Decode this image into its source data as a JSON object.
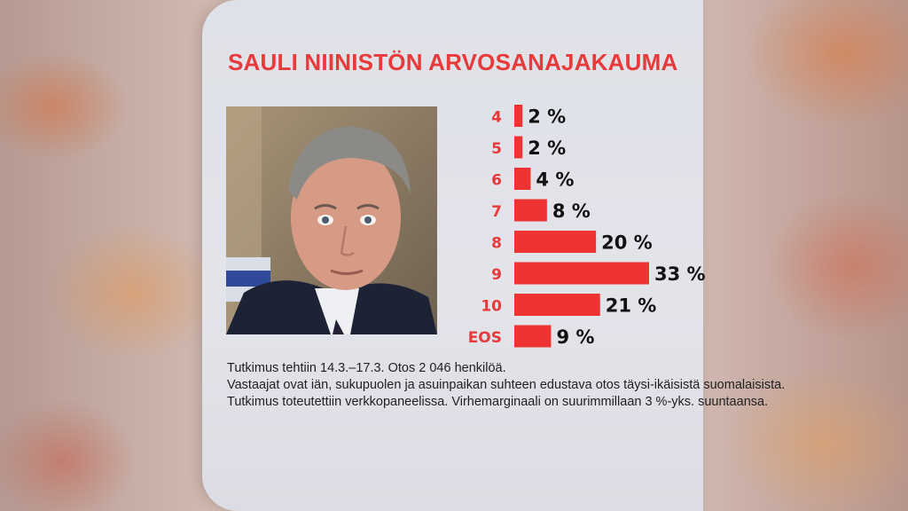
{
  "title": "SAULI NIINISTÖN ARVOSANAJAKAUMA",
  "colors": {
    "bar": "#ee3333",
    "category_label": "#e83a3a",
    "value_label": "#111111",
    "title": "#e83a3a"
  },
  "chart_data": {
    "type": "bar",
    "orientation": "horizontal",
    "title": "SAULI NIINISTÖN ARVOSANAJAKAUMA",
    "categories": [
      "4",
      "5",
      "6",
      "7",
      "8",
      "9",
      "10",
      "EOS"
    ],
    "values": [
      2,
      2,
      4,
      8,
      20,
      33,
      21,
      9
    ],
    "value_labels": [
      "2 %",
      "2 %",
      "4 %",
      "8 %",
      "20 %",
      "33 %",
      "21 %",
      "9 %"
    ],
    "xlim": [
      0,
      33
    ],
    "grid": false,
    "legend": "none"
  },
  "footnote": [
    "Tutkimus tehtiin 14.3.–17.3.  Otos 2 046 henkilöä.",
    "Vastaajat ovat iän, sukupuolen ja asuinpaikan suhteen edustava otos täysi-ikäisistä suomalaisista.",
    "Tutkimus toteutettiin verkkopaneelissa. Virhemarginaali on suurimmillaan 3 %-yks. suuntaansa."
  ]
}
